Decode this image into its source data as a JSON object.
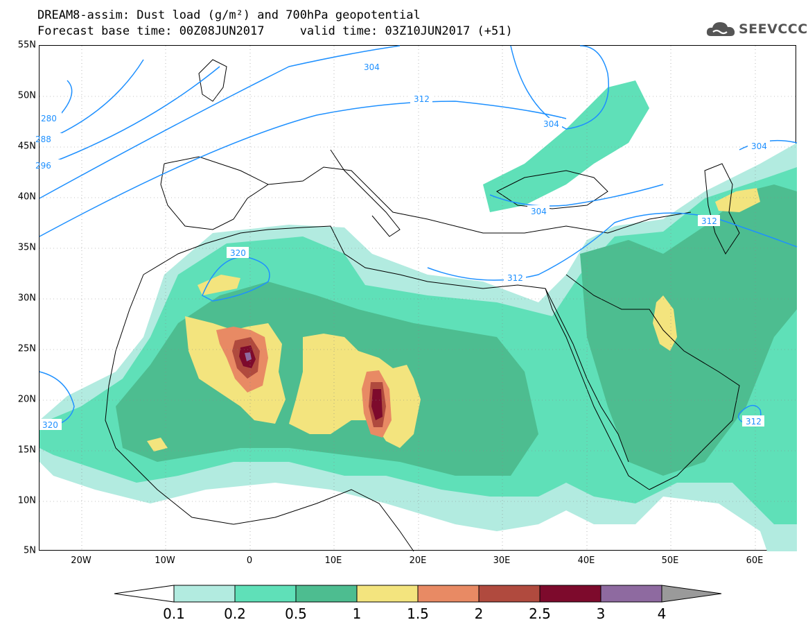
{
  "title": {
    "line1": "DREAM8-assim: Dust load (g/m²) and 700hPa geopotential",
    "line2": "Forecast base time: 00Z08JUN2017     valid time: 03Z10JUN2017 (+51)"
  },
  "logo": {
    "icon": "cloud-icon",
    "text": "SEEVCCC"
  },
  "map": {
    "lon_range": [
      -25,
      65
    ],
    "lat_range": [
      5,
      55
    ],
    "lat_ticks": [
      "55N",
      "50N",
      "45N",
      "40N",
      "35N",
      "30N",
      "25N",
      "20N",
      "15N",
      "10N",
      "5N"
    ],
    "lon_ticks": [
      "20W",
      "10W",
      "0",
      "10E",
      "20E",
      "30E",
      "40E",
      "50E",
      "60E"
    ],
    "contour_labels": [
      "304",
      "312",
      "304",
      "280",
      "288",
      "296",
      "304",
      "304",
      "312",
      "320",
      "312",
      "320",
      "312"
    ],
    "contour_color": "#1e90ff"
  },
  "colorbar": {
    "labels": [
      "0.1",
      "0.2",
      "0.5",
      "1",
      "1.5",
      "2",
      "2.5",
      "3",
      "4"
    ],
    "colors": [
      "#b2ebe0",
      "#5fe0b8",
      "#4dbd90",
      "#f3e47e",
      "#e88a64",
      "#b04a3e",
      "#7d0a2c",
      "#8e6aa0"
    ],
    "low_end_color": "#ffffff",
    "high_end_color": "#9a9a9a"
  }
}
